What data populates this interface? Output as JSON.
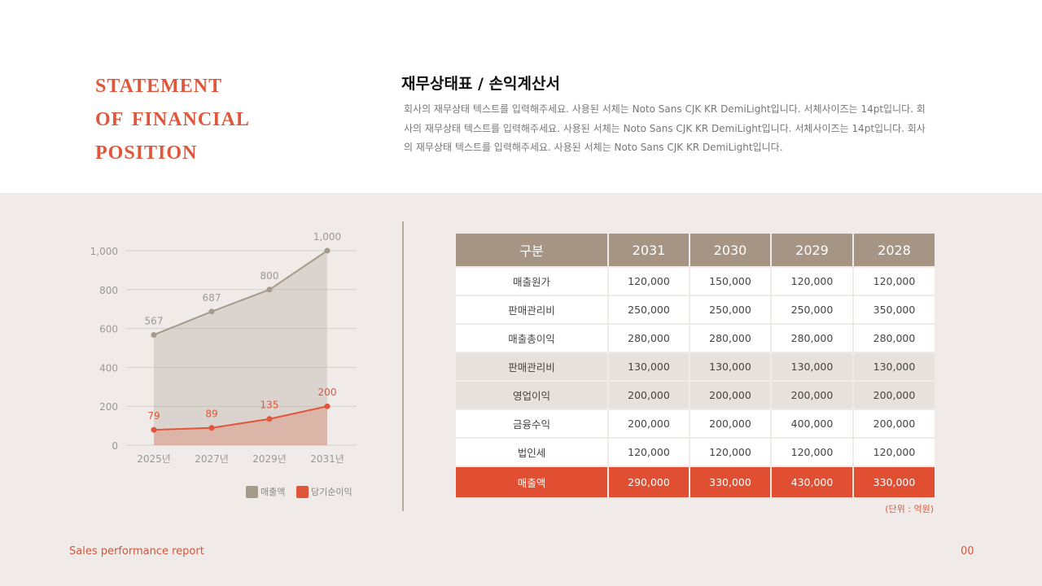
{
  "header": {
    "title_lines": [
      "Statement",
      "of Financial",
      "Position"
    ],
    "subtitle": "재무상태표 / 손익계산서",
    "description": "회사의 재무상태 텍스트를 입력해주세요. 사용된 서체는 Noto Sans CJK KR DemiLight입니다. 서체사이즈는 14pt입니다. 회사의 재무상태 텍스트를 입력해주세요. 사용된 서체는 Noto Sans CJK KR DemiLight입니다. 서체사이즈는 14pt입니다. 회사의 재무상태 텍스트를 입력해주세요. 사용된 서체는 Noto Sans CJK KR DemiLight입니다."
  },
  "chart_data": {
    "type": "area",
    "categories": [
      "2025년",
      "2027년",
      "2029년",
      "2031년"
    ],
    "series": [
      {
        "name": "매출액",
        "values": [
          567,
          687,
          800,
          1000
        ],
        "color": "#a69a8c"
      },
      {
        "name": "당기순이익",
        "values": [
          79,
          89,
          135,
          200
        ],
        "color": "#e0563a"
      }
    ],
    "yticks": [
      0,
      200,
      400,
      600,
      800,
      1000
    ],
    "ytick_labels": [
      "0",
      "200",
      "400",
      "600",
      "800",
      "1,000"
    ],
    "ylim": [
      0,
      1000
    ],
    "grid": true,
    "legend": "bottom-right",
    "data_labels": [
      [
        "567",
        "687",
        "800",
        "1,000"
      ],
      [
        "79",
        "89",
        "135",
        "200"
      ]
    ]
  },
  "table": {
    "headers": [
      "구분",
      "2031",
      "2030",
      "2029",
      "2028"
    ],
    "rows": [
      [
        "매출원가",
        "120,000",
        "150,000",
        "120,000",
        "120,000"
      ],
      [
        "판매관리비",
        "250,000",
        "250,000",
        "250,000",
        "350,000"
      ],
      [
        "매출총이익",
        "280,000",
        "280,000",
        "280,000",
        "280,000"
      ],
      [
        "판매관리비",
        "130,000",
        "130,000",
        "130,000",
        "130,000"
      ],
      [
        "영업이익",
        "200,000",
        "200,000",
        "200,000",
        "200,000"
      ],
      [
        "금융수익",
        "200,000",
        "200,000",
        "400,000",
        "200,000"
      ],
      [
        "법인세",
        "120,000",
        "120,000",
        "120,000",
        "120,000"
      ],
      [
        "매출액",
        "290,000",
        "330,000",
        "430,000",
        "330,000"
      ]
    ],
    "unit": "(단위 : 억원)"
  },
  "footer": {
    "label": "Sales performance report",
    "page": "00"
  }
}
